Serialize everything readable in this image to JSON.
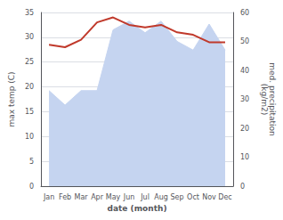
{
  "chart_data": {
    "type": "line",
    "xlabel": "date (month)",
    "ylabel": "max temp (C)",
    "y2label": "med. precipitation\n(kg/m2)",
    "categories": [
      "Jan",
      "Feb",
      "Mar",
      "Apr",
      "May",
      "Jun",
      "Jul",
      "Aug",
      "Sep",
      "Oct",
      "Nov",
      "Dec"
    ],
    "series": [
      {
        "type": "area",
        "axis": "y2",
        "color": "#c5d4f0",
        "values": [
          33,
          28,
          33,
          33,
          54,
          57,
          53,
          57,
          50,
          47,
          56,
          47
        ]
      },
      {
        "type": "line",
        "color": "#c0392b",
        "values": [
          28.5,
          28.0,
          29.5,
          33.0,
          34.0,
          32.5,
          32.0,
          32.5,
          31.0,
          30.5,
          29.0,
          29.0
        ]
      }
    ],
    "ylim": [
      0,
      35
    ],
    "yticks": [
      0,
      5,
      10,
      15,
      20,
      25,
      30,
      35
    ],
    "y2lim": [
      0,
      60
    ],
    "y2ticks": [
      0,
      10,
      20,
      30,
      40,
      50,
      60
    ],
    "grid": true
  }
}
